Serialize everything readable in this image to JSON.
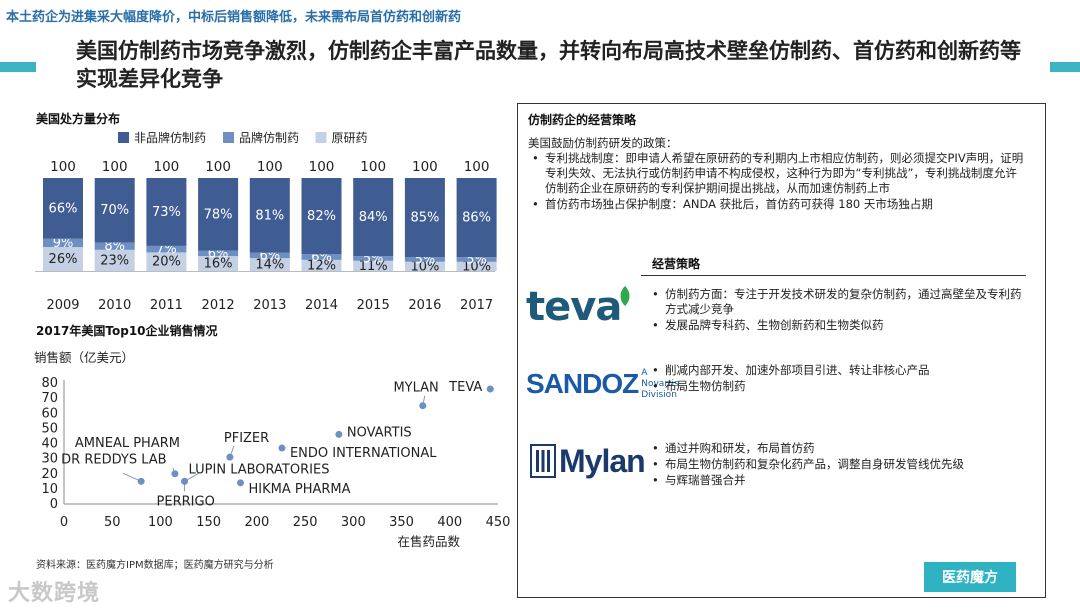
{
  "header": {
    "banner": "本土药企为进集采大幅度降价，中标后销售额降低，未来需布局首仿药和创新药",
    "title": "美国仿制药市场竞争激烈，仿制药企丰富产品数量，并转向布局高技术壁垒仿制药、首仿药和创新药等实现差异化竞争"
  },
  "colors": {
    "accent": "#3bb3c3",
    "series1": "#3f5d92",
    "series2": "#6e8fc2",
    "series3": "#c4d0e4"
  },
  "chart_data": [
    {
      "type": "bar",
      "title": "美国处方量分布",
      "stacked": true,
      "categories": [
        "2009",
        "2010",
        "2011",
        "2012",
        "2013",
        "2014",
        "2015",
        "2016",
        "2017"
      ],
      "totals": [
        "100",
        "100",
        "100",
        "100",
        "100",
        "100",
        "100",
        "100",
        "100"
      ],
      "legend_position": "top",
      "series": [
        {
          "name": "原研药",
          "values": [
            26,
            23,
            20,
            16,
            14,
            12,
            11,
            10,
            10
          ],
          "labels": [
            "26%",
            "23%",
            "20%",
            "16%",
            "14%",
            "12%",
            "11%",
            "10%",
            "10%"
          ]
        },
        {
          "name": "品牌仿制药",
          "values": [
            9,
            8,
            7,
            6,
            6,
            6,
            5,
            5,
            5
          ],
          "labels": [
            "9%",
            "8%",
            "7%",
            "6%",
            "6%",
            "6%",
            "5%",
            "5%",
            "5%"
          ]
        },
        {
          "name": "非品牌仿制药",
          "values": [
            66,
            70,
            73,
            78,
            81,
            82,
            84,
            85,
            86
          ],
          "labels": [
            "66%",
            "70%",
            "73%",
            "78%",
            "81%",
            "82%",
            "84%",
            "85%",
            "86%"
          ]
        }
      ]
    },
    {
      "type": "scatter",
      "title": "2017年美国Top10企业销售情况",
      "xlabel": "在售药品数",
      "ylabel": "销售额（亿美元）",
      "xlim": [
        0,
        450
      ],
      "ylim": [
        0,
        80
      ],
      "xticks": [
        "0",
        "50",
        "100",
        "150",
        "200",
        "250",
        "300",
        "350",
        "400",
        "450"
      ],
      "yticks": [
        "0",
        "10",
        "20",
        "30",
        "40",
        "50",
        "60",
        "70",
        "80"
      ],
      "points": [
        {
          "label": "TEVA",
          "x": 442,
          "y": 76
        },
        {
          "label": "MYLAN",
          "x": 372,
          "y": 65
        },
        {
          "label": "NOVARTIS",
          "x": 285,
          "y": 46
        },
        {
          "label": "ENDO INTERNATIONAL",
          "x": 226,
          "y": 37
        },
        {
          "label": "PFIZER",
          "x": 172,
          "y": 31
        },
        {
          "label": "AMNEAL PHARM",
          "x": 115,
          "y": 20
        },
        {
          "label": "LUPIN LABORATORIES",
          "x": 125,
          "y": 15
        },
        {
          "label": "DR REDDYS LAB",
          "x": 80,
          "y": 15
        },
        {
          "label": "PERRIGO",
          "x": 125,
          "y": 15
        },
        {
          "label": "HIKMA PHARMA",
          "x": 183,
          "y": 14
        }
      ]
    }
  ],
  "source": "资料来源：医药魔方IPM数据库；医药魔方研究与分析",
  "strategy_box": {
    "title": "仿制药企的经营策略",
    "policy_intro": "美国鼓励仿制药研发的政策：",
    "policies": [
      "专利挑战制度：即申请人希望在原研药的专利期内上市相应仿制药，则必须提交PIV声明，证明专利失效、无法执行或仿制药申请不构成侵权，这种行为即为“专利挑战”，专利挑战制度允许仿制药企业在原研药的专利保护期间提出挑战，从而加速仿制药上市",
      "首仿药市场独占保护制度：ANDA 获批后，首仿药可获得 180 天市场独占期"
    ],
    "strategy_heading": "经营策略",
    "companies": [
      {
        "logo": "teva",
        "logo_icon": "teva-logo-icon",
        "items": [
          "仿制药方面：专注于开发技术研发的复杂仿制药，通过高壁垒及专利药方式减少竞争",
          "发展品牌专科药、生物创新药和生物类似药"
        ]
      },
      {
        "logo": "SANDOZ",
        "logo_sub": "A Novartis Division",
        "items": [
          "削减内部开发、加速外部项目引进、转让非核心产品",
          "布局生物仿制药"
        ]
      },
      {
        "logo": "Mylan",
        "logo_icon": "mylan-logo-icon",
        "items": [
          "通过并购和研发，布局首仿药",
          "布局生物仿制药和复杂化药产品，调整自身研发管线优先级",
          "与辉瑞普强合并"
        ]
      }
    ]
  },
  "watermark": "大数跨境",
  "brand": "医药魔方"
}
